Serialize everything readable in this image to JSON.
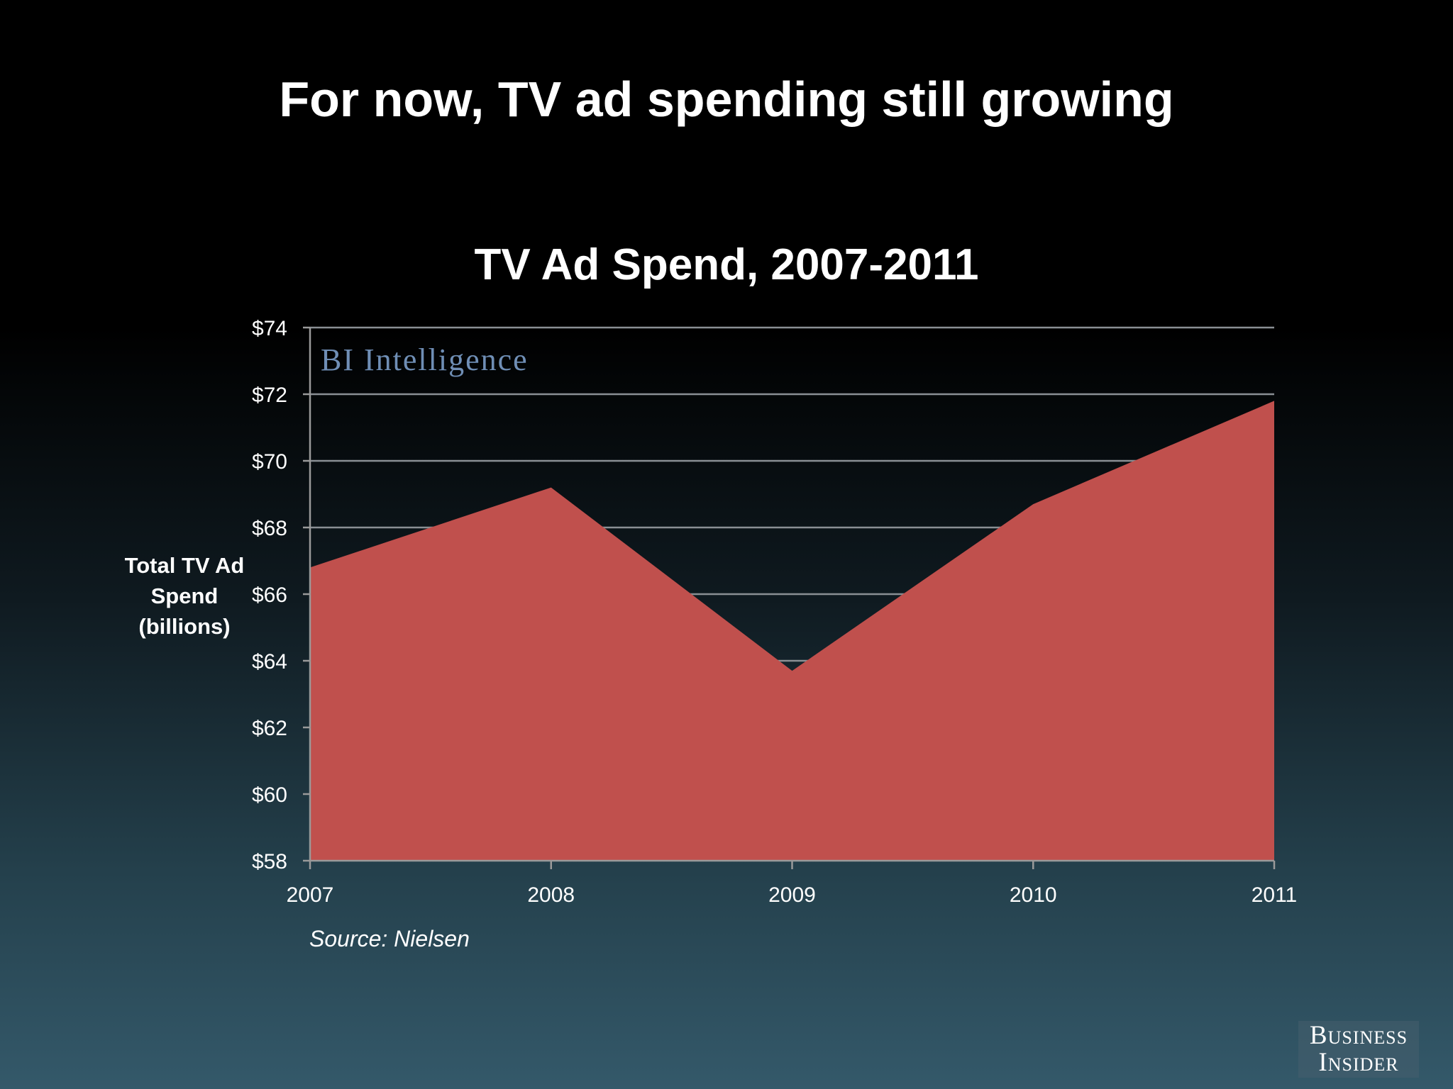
{
  "slide_title": "For now, TV ad spending still growing",
  "logo": {
    "line1": "Business",
    "line2": "Insider"
  },
  "chart_data": {
    "type": "area",
    "title": "TV Ad Spend, 2007-2011",
    "ylabel": "Total TV Ad Spend (billions)",
    "xlabel": "",
    "categories": [
      "2007",
      "2008",
      "2009",
      "2010",
      "2011"
    ],
    "series": [
      {
        "values": [
          66.8,
          69.2,
          63.7,
          68.7,
          71.8
        ]
      }
    ],
    "ylim": [
      58,
      74
    ],
    "yticks": [
      58,
      60,
      62,
      64,
      66,
      68,
      70,
      72,
      74
    ],
    "ytick_labels": [
      "$58",
      "$60",
      "$62",
      "$64",
      "$66",
      "$68",
      "$70",
      "$72",
      "$74"
    ],
    "grid": true,
    "legend": "none",
    "watermark": "BI Intelligence",
    "source": "Source: Nielsen",
    "colors": {
      "area": "#c0504d",
      "grid": "#8a8f94",
      "axis": "#9a9a9a"
    }
  }
}
